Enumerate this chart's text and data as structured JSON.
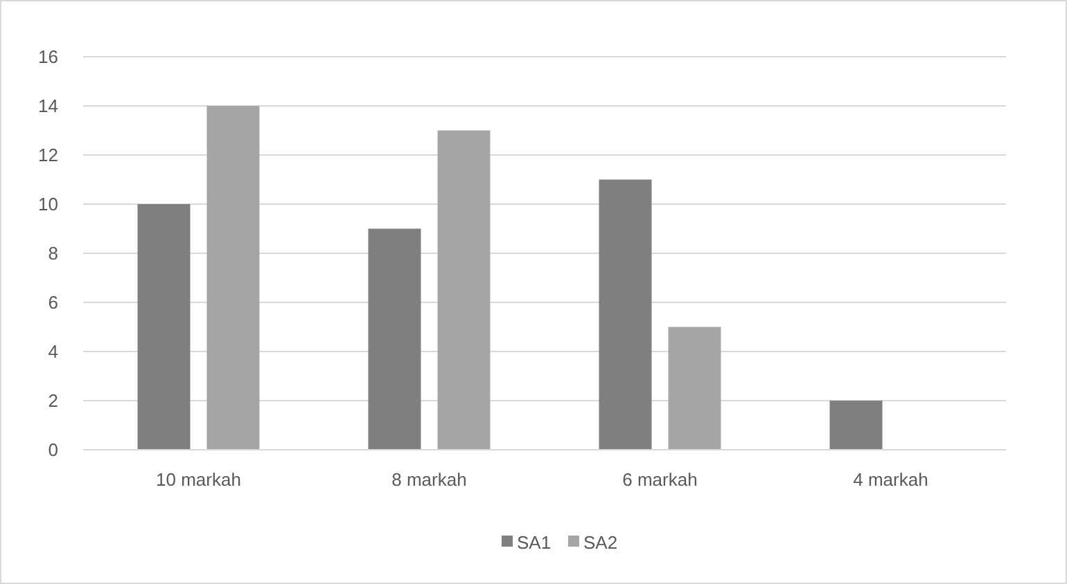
{
  "chart_data": {
    "type": "bar",
    "categories": [
      "10 markah",
      "8 markah",
      "6 markah",
      "4 markah"
    ],
    "series": [
      {
        "name": "SA1",
        "color": "#7f7f7f",
        "values": [
          10,
          9,
          11,
          2
        ]
      },
      {
        "name": "SA2",
        "color": "#a5a5a5",
        "values": [
          14,
          13,
          5,
          0
        ]
      }
    ],
    "ylim": [
      0,
      16
    ],
    "yticks": [
      0,
      2,
      4,
      6,
      8,
      10,
      12,
      14,
      16
    ],
    "grid": "y",
    "legend": "bottom"
  }
}
